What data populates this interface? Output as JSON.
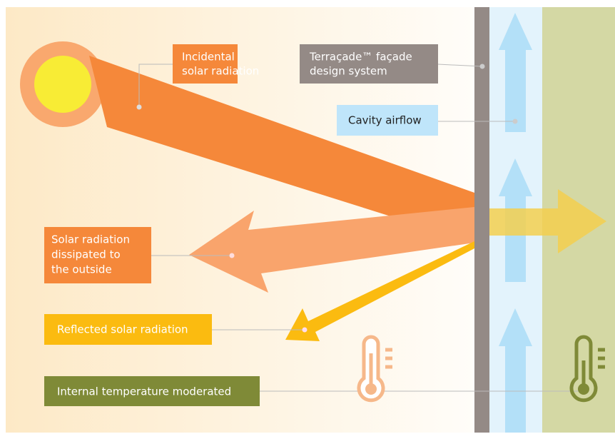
{
  "labels": {
    "incidental": [
      "Incidental",
      "solar radiation"
    ],
    "facade": [
      "Terraçade™ façade",
      "design system"
    ],
    "cavity": [
      "Cavity airflow"
    ],
    "dissipated": [
      "Solar radiation",
      "dissipated to",
      "the outside"
    ],
    "reflected": [
      "Reflected solar radiation"
    ],
    "internal": [
      "Internal temperature moderated"
    ]
  }
}
